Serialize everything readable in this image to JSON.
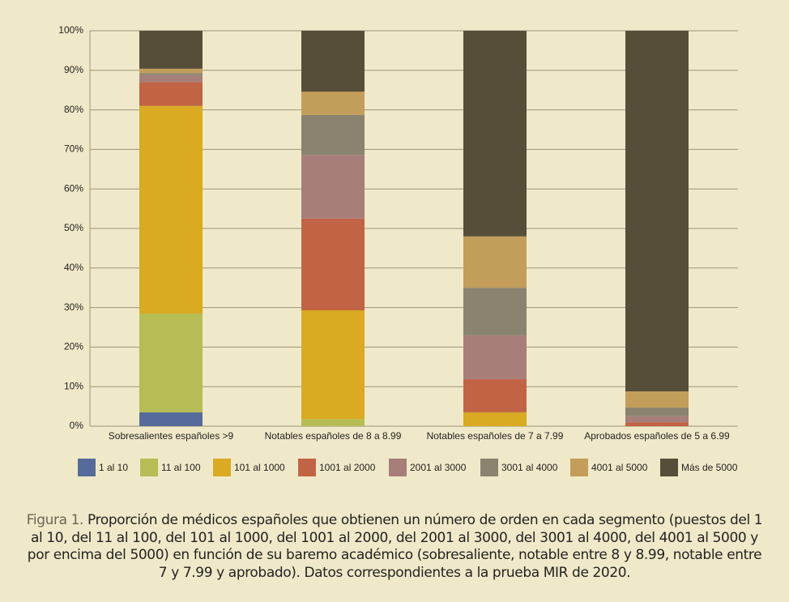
{
  "chart_data": {
    "type": "stacked_bar",
    "caption_label": "Figura 1.",
    "caption": "Proporción de médicos españoles que obtienen un número de orden en cada segmento (puestos del 1 al 10, del 11 al 100, del 101 al 1000, del 1001 al 2000, del 2001 al 3000, del 3001 al 4000, del 4001 al 5000 y por encima del 5000) en función de su baremo académico (sobresaliente, notable entre 8 y 8.99, notable entre 7 y 7.99 y aprobado). Datos correspondientes a la prueba MIR de 2020.",
    "categories": [
      "Sobresalientes españoles >9",
      "Notables españoles de 8 a 8.99",
      "Notables españoles de 7 a 7.99",
      "Aprobados españoles de 5 a 6.99"
    ],
    "series": [
      {
        "name": "1 al 10",
        "color": "#566b9b",
        "values": [
          3.5,
          0,
          0,
          0
        ]
      },
      {
        "name": "11 al 100",
        "color": "#b6bd55",
        "values": [
          25,
          1.8,
          0,
          0
        ]
      },
      {
        "name": "101 al 1000",
        "color": "#d9aa22",
        "values": [
          52.5,
          27.5,
          3.5,
          0
        ]
      },
      {
        "name": "1001 al 2000",
        "color": "#c16445",
        "values": [
          6,
          23.2,
          8.4,
          1
        ]
      },
      {
        "name": "2001 al 3000",
        "color": "#a77e79",
        "values": [
          1.8,
          16.1,
          11.1,
          1.5
        ]
      },
      {
        "name": "3001 al 4000",
        "color": "#8a8370",
        "values": [
          0.5,
          10.1,
          12,
          2.2
        ]
      },
      {
        "name": "4001 al 5000",
        "color": "#c39d5a",
        "values": [
          1.1,
          5.9,
          13,
          4.1
        ]
      },
      {
        "name": "Más de 5000",
        "color": "#574e3a",
        "values": [
          9.6,
          15.4,
          52,
          91.2
        ]
      }
    ],
    "ylim": [
      0,
      100
    ],
    "yticks": [
      {
        "value": 0,
        "label": "0%"
      },
      {
        "value": 10,
        "label": "10%"
      },
      {
        "value": 20,
        "label": "20%"
      },
      {
        "value": 30,
        "label": "30%"
      },
      {
        "value": 40,
        "label": "40%"
      },
      {
        "value": 50,
        "label": "50%"
      },
      {
        "value": 60,
        "label": "60%"
      },
      {
        "value": 70,
        "label": "70%"
      },
      {
        "value": 80,
        "label": "80%"
      },
      {
        "value": 90,
        "label": "90%"
      },
      {
        "value": 100,
        "label": "100%"
      }
    ],
    "grid": true,
    "legend": "bottom"
  }
}
